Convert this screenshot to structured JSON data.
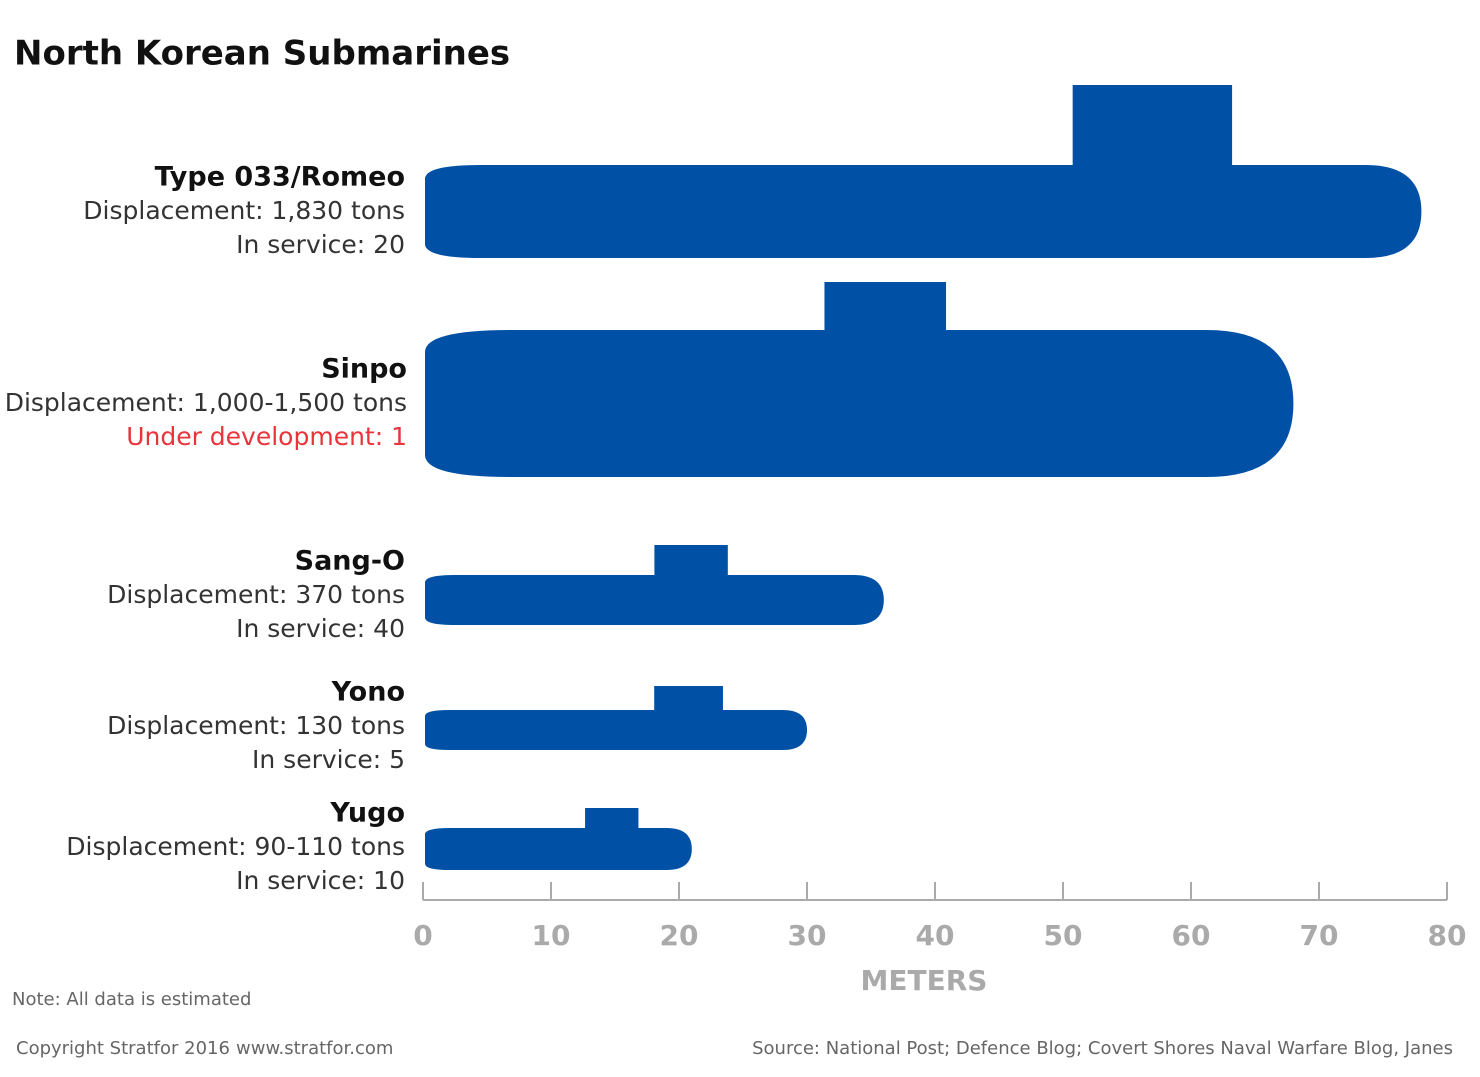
{
  "chart_data": {
    "type": "bar",
    "orientation": "horizontal",
    "title": "North Korean Submarines",
    "categories": [
      "Type 033/Romeo",
      "Sinpo",
      "Sang-O",
      "Yono",
      "Yugo"
    ],
    "values": [
      78,
      68,
      36,
      30,
      21
    ],
    "color": "#0050a5",
    "descriptions": [
      [
        {
          "text": "Displacement: 1,830 tons",
          "color": "#333333"
        },
        {
          "text": "In service: 20",
          "color": "#333333"
        }
      ],
      [
        {
          "text": "Displacement: 1,000-1,500 tons",
          "color": "#333333"
        },
        {
          "text": "Under development: 1",
          "color": "#e8343a"
        }
      ],
      [
        {
          "text": "Displacement: 370 tons",
          "color": "#333333"
        },
        {
          "text": "In service: 40",
          "color": "#333333"
        }
      ],
      [
        {
          "text": "Displacement: 130 tons",
          "color": "#333333"
        },
        {
          "text": "In service: 5",
          "color": "#333333"
        }
      ],
      [
        {
          "text": "Displacement: 90-110 tons",
          "color": "#333333"
        },
        {
          "text": "In service: 10",
          "color": "#333333"
        }
      ]
    ],
    "xlabel": "METERS",
    "xlim": [
      0,
      80
    ],
    "xticks": [
      0,
      10,
      20,
      30,
      40,
      50,
      60,
      70,
      80
    ],
    "note": "Note: All data is estimated",
    "copyright": "Copyright Stratfor 2016",
    "website": "www.stratfor.com",
    "source": "Source: National Post; Defence Blog; Covert Shores Naval Warfare Blog, Janes"
  }
}
